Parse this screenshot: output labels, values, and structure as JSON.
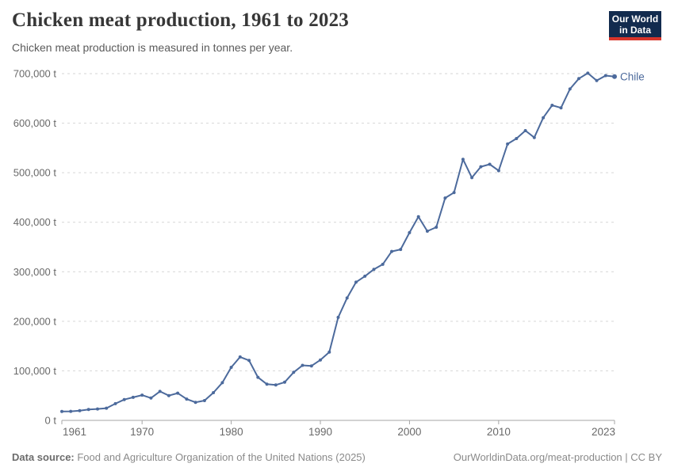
{
  "branding": {
    "logo_line1": "Our World",
    "logo_line2": "in Data",
    "logo_bg_color": "#122b4e",
    "logo_accent_color": "#d8352b"
  },
  "footer": {
    "source_label": "Data source:",
    "source_text": " Food and Agriculture Organization of the United Nations (2025)",
    "credit": "OurWorldinData.org/meat-production | CC BY"
  },
  "chart_data": {
    "type": "line",
    "title": "Chicken meat production, 1961 to 2023",
    "subtitle": "Chicken meat production is measured in tonnes per year.",
    "unit": "tonnes per year",
    "grid": "dashed-horizontal",
    "legend_position": "end-of-line",
    "xlim": [
      1961,
      2023
    ],
    "ylim": [
      0,
      700000
    ],
    "x_ticks": [
      1961,
      1970,
      1980,
      1990,
      2000,
      2010,
      2023
    ],
    "x_tick_labels": [
      "1961",
      "1970",
      "1980",
      "1990",
      "2000",
      "2010",
      "2023"
    ],
    "y_ticks": [
      0,
      100000,
      200000,
      300000,
      400000,
      500000,
      600000,
      700000
    ],
    "y_tick_labels": [
      "0 t",
      "100,000 t",
      "200,000 t",
      "300,000 t",
      "400,000 t",
      "500,000 t",
      "600,000 t",
      "700,000 t"
    ],
    "series": [
      {
        "name": "Chile",
        "color": "#4c6a9c",
        "x": [
          1961,
          1962,
          1963,
          1964,
          1965,
          1966,
          1967,
          1968,
          1969,
          1970,
          1971,
          1972,
          1973,
          1974,
          1975,
          1976,
          1977,
          1978,
          1979,
          1980,
          1981,
          1982,
          1983,
          1984,
          1985,
          1986,
          1987,
          1988,
          1989,
          1990,
          1991,
          1992,
          1993,
          1994,
          1995,
          1996,
          1997,
          1998,
          1999,
          2000,
          2001,
          2002,
          2003,
          2004,
          2005,
          2006,
          2007,
          2008,
          2009,
          2010,
          2011,
          2012,
          2013,
          2014,
          2015,
          2016,
          2017,
          2018,
          2019,
          2020,
          2021,
          2022,
          2023
        ],
        "values": [
          18100,
          18200,
          19700,
          22000,
          23000,
          24600,
          33700,
          42000,
          46500,
          51000,
          45000,
          58500,
          50000,
          55000,
          43000,
          36500,
          40000,
          56000,
          76000,
          107000,
          128000,
          121000,
          87000,
          73000,
          71500,
          77000,
          97000,
          111000,
          110000,
          122000,
          138000,
          208000,
          247000,
          279000,
          291000,
          305000,
          315000,
          341000,
          345000,
          379000,
          411000,
          382000,
          390000,
          449000,
          460000,
          527000,
          490000,
          512000,
          517000,
          504000,
          558000,
          569000,
          585000,
          571000,
          611000,
          636000,
          631000,
          669000,
          690000,
          701000,
          686000,
          696000,
          694000
        ]
      }
    ],
    "style": {
      "gridline_color": "#d6d6d6",
      "axis_color": "#a5a5a5",
      "tick_label_color": "#696969"
    }
  }
}
